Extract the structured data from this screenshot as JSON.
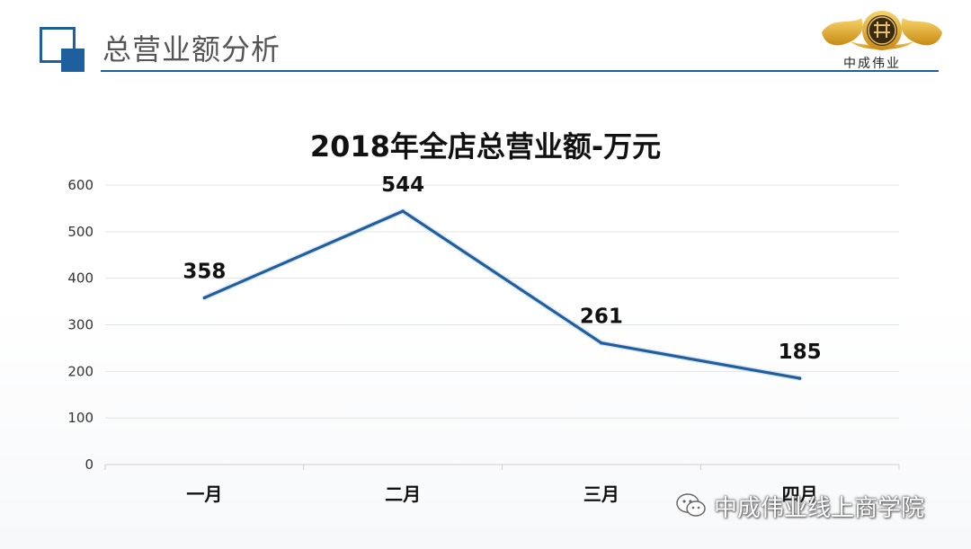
{
  "header": {
    "title": "总营业额分析",
    "logo_text": "中成伟业",
    "accent_color": "#1f5f9e"
  },
  "chart_data": {
    "type": "line",
    "title": "2018年全店总营业额-万元",
    "categories": [
      "一月",
      "二月",
      "三月",
      "四月"
    ],
    "series": [
      {
        "values": [
          358,
          544,
          261,
          185
        ],
        "color": "#1f5f9e"
      }
    ],
    "data_labels": [
      "358",
      "544",
      "261",
      "185"
    ],
    "ylim": [
      0,
      600
    ],
    "y_ticks": [
      "0",
      "100",
      "200",
      "300",
      "400",
      "500",
      "600"
    ],
    "grid": true,
    "legend": "none"
  },
  "watermark": {
    "icon": "wechat-icon",
    "text": "中成伟业线上商学院"
  }
}
